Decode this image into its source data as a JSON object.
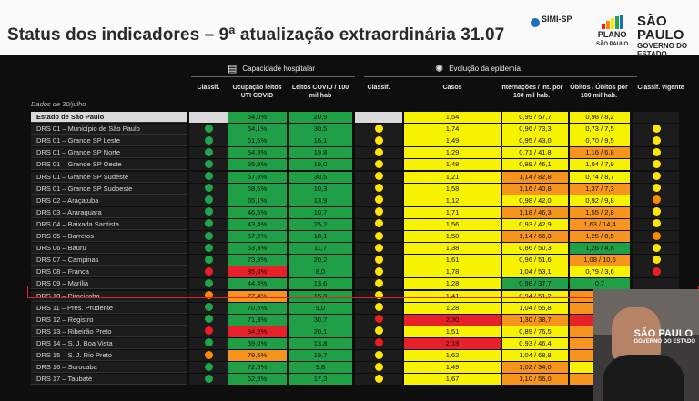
{
  "header": {
    "title": "Status dos indicadores – 9ª atualização extraordinária 31.07",
    "logos": {
      "simi": "SIMI-SP",
      "plano": "PLANO",
      "plano_sub": "SÃO PAULO",
      "sp": "SÃO PAULO",
      "sp_sub": "GOVERNO DO ESTADO"
    }
  },
  "sections": {
    "hospital": "Capacidade hospitalar",
    "epidemia": "Evolução da epidemia"
  },
  "columns": {
    "dados": "Dados de 30/julho",
    "classif1": "Classif.",
    "uti": "Ocupação leitos UTI COVID",
    "leitos": "Leitos COVID / 100 mil hab",
    "classif2": "Classif.",
    "casos": "Casos",
    "internacoes": "Internações / Int. por 100 mil hab.",
    "obitos": "Óbitos / Óbitos por 100 mil hab.",
    "vigente": "Classif. vigente"
  },
  "colors": {
    "green": "#20a046",
    "yellow": "#f7f300",
    "orange": "#f7941d",
    "red": "#e8202a",
    "dot_green": "#1fa64a",
    "dot_yellow": "#ffe600",
    "dot_orange": "#ff8a00",
    "dot_red": "#ee1c24"
  },
  "rows": [
    {
      "name": "Estado de São Paulo",
      "cls1": "",
      "uti": "64,0%",
      "uti_c": "green",
      "leitos": "20,9",
      "cls2": "",
      "casos": "1,54",
      "casos_c": "yellow",
      "int": "0,99 / 57,7",
      "int_c": "yellow",
      "obi": "0,98 / 8,2",
      "obi_c": "yellow",
      "vig": ""
    },
    {
      "name": "DRS 01 – Município de São Paulo",
      "cls1": "green",
      "uti": "64,1%",
      "uti_c": "green",
      "leitos": "30,5",
      "cls2": "yellow",
      "casos": "1,74",
      "casos_c": "yellow",
      "int": "0,96 / 73,3",
      "int_c": "yellow",
      "obi": "0,73 / 7,5",
      "obi_c": "yellow",
      "vig": "yellow"
    },
    {
      "name": "DRS 01 – Grande SP Leste",
      "cls1": "green",
      "uti": "61,6%",
      "uti_c": "green",
      "leitos": "16,1",
      "cls2": "yellow",
      "casos": "1,49",
      "casos_c": "yellow",
      "int": "0,95 / 43,0",
      "int_c": "yellow",
      "obi": "0,70 / 9,5",
      "obi_c": "yellow",
      "vig": "yellow"
    },
    {
      "name": "DRS 01 – Grande SP Norte",
      "cls1": "green",
      "uti": "54,9%",
      "uti_c": "green",
      "leitos": "19,8",
      "cls2": "yellow",
      "casos": "1,29",
      "casos_c": "yellow",
      "int": "0,71 / 41,8",
      "int_c": "yellow",
      "obi": "1,16 / 6,8",
      "obi_c": "orange",
      "vig": "yellow"
    },
    {
      "name": "DRS 01 – Grande SP Oeste",
      "cls1": "green",
      "uti": "55,9%",
      "uti_c": "green",
      "leitos": "19,0",
      "cls2": "yellow",
      "casos": "1,48",
      "casos_c": "yellow",
      "int": "0,99 / 46,1",
      "int_c": "yellow",
      "obi": "1,04 / 7,9",
      "obi_c": "yellow",
      "vig": "yellow"
    },
    {
      "name": "DRS 01 – Grande SP Sudeste",
      "cls1": "green",
      "uti": "57,9%",
      "uti_c": "green",
      "leitos": "30,5",
      "cls2": "yellow",
      "casos": "1,21",
      "casos_c": "yellow",
      "int": "1,14 / 82,8",
      "int_c": "orange",
      "obi": "0,74 / 8,7",
      "obi_c": "yellow",
      "vig": "yellow"
    },
    {
      "name": "DRS 01 – Grande SP Sudoeste",
      "cls1": "green",
      "uti": "58,6%",
      "uti_c": "green",
      "leitos": "10,3",
      "cls2": "yellow",
      "casos": "1,58",
      "casos_c": "yellow",
      "int": "1,16 / 40,8",
      "int_c": "orange",
      "obi": "1,37 / 7,3",
      "obi_c": "orange",
      "vig": "yellow"
    },
    {
      "name": "DRS 02 – Araçatuba",
      "cls1": "green",
      "uti": "65,1%",
      "uti_c": "green",
      "leitos": "13,9",
      "cls2": "yellow",
      "casos": "1,12",
      "casos_c": "yellow",
      "int": "0,98 / 42,0",
      "int_c": "yellow",
      "obi": "0,92 / 9,8",
      "obi_c": "yellow",
      "vig": "orange"
    },
    {
      "name": "DRS 03 – Araraquara",
      "cls1": "green",
      "uti": "46,5%",
      "uti_c": "green",
      "leitos": "10,7",
      "cls2": "yellow",
      "casos": "1,71",
      "casos_c": "yellow",
      "int": "1,18 / 46,3",
      "int_c": "orange",
      "obi": "1,55 / 2,8",
      "obi_c": "orange",
      "vig": "yellow"
    },
    {
      "name": "DRS 04 – Baixada Santista",
      "cls1": "green",
      "uti": "43,4%",
      "uti_c": "green",
      "leitos": "25,2",
      "cls2": "yellow",
      "casos": "1,56",
      "casos_c": "yellow",
      "int": "0,93 / 42,9",
      "int_c": "yellow",
      "obi": "1,63 / 14,4",
      "obi_c": "orange",
      "vig": "yellow"
    },
    {
      "name": "DRS 05 – Barretos",
      "cls1": "green",
      "uti": "57,2%",
      "uti_c": "green",
      "leitos": "18,1",
      "cls2": "yellow",
      "casos": "1,58",
      "casos_c": "yellow",
      "int": "1,14 / 66,3",
      "int_c": "orange",
      "obi": "1,25 / 8,5",
      "obi_c": "orange",
      "vig": "orange"
    },
    {
      "name": "DRS 06 – Bauru",
      "cls1": "green",
      "uti": "63,3%",
      "uti_c": "green",
      "leitos": "11,7",
      "cls2": "yellow",
      "casos": "1,38",
      "casos_c": "yellow",
      "int": "0,86 / 50,3",
      "int_c": "yellow",
      "obi": "1,26 / 4,8",
      "obi_c": "green",
      "vig": "yellow"
    },
    {
      "name": "DRS 07 – Campinas",
      "cls1": "green",
      "uti": "73,3%",
      "uti_c": "green",
      "leitos": "20,2",
      "cls2": "yellow",
      "casos": "1,61",
      "casos_c": "yellow",
      "int": "0,96 / 51,6",
      "int_c": "yellow",
      "obi": "1,08 / 10,6",
      "obi_c": "orange",
      "vig": "yellow"
    },
    {
      "name": "DRS 08 – Franca",
      "cls1": "red",
      "uti": "85,0%",
      "uti_c": "red",
      "leitos": "8,0",
      "cls2": "yellow",
      "casos": "1,78",
      "casos_c": "yellow",
      "int": "1,04 / 53,1",
      "int_c": "yellow",
      "obi": "0,79 / 3,6",
      "obi_c": "yellow",
      "vig": "red"
    },
    {
      "name": "DRS 09 – Marília",
      "cls1": "green",
      "uti": "44,4%",
      "uti_c": "green",
      "leitos": "13,6",
      "cls2": "yellow",
      "casos": "1,28",
      "casos_c": "yellow",
      "int": "0,98 / 37,7",
      "int_c": "green",
      "obi": "0,7",
      "obi_c": "green",
      "vig": ""
    },
    {
      "name": "DRS 10 – Piracicaba",
      "cls1": "orange",
      "uti": "77,4%",
      "uti_c": "orange",
      "leitos": "15,0",
      "cls2": "yellow",
      "casos": "1,41",
      "casos_c": "yellow",
      "int": "0,94 / 51,2",
      "int_c": "yellow",
      "obi": "1,1",
      "obi_c": "orange",
      "vig": ""
    },
    {
      "name": "DRS 11 – Pres. Prudente",
      "cls1": "green",
      "uti": "70,5%",
      "uti_c": "green",
      "leitos": "9,0",
      "cls2": "yellow",
      "casos": "1,28",
      "casos_c": "yellow",
      "int": "1,04 / 55,8",
      "int_c": "yellow",
      "obi": "1,3",
      "obi_c": "orange",
      "vig": ""
    },
    {
      "name": "DRS 12 – Registro",
      "cls1": "green",
      "uti": "71,3%",
      "uti_c": "green",
      "leitos": "30,7",
      "cls2": "red",
      "casos": "2,30",
      "casos_c": "red",
      "int": "1,30 / 38,7",
      "int_c": "orange",
      "obi": "7,2",
      "obi_c": "red",
      "vig": ""
    },
    {
      "name": "DRS 13 – Ribeirão Preto",
      "cls1": "red",
      "uti": "84,9%",
      "uti_c": "red",
      "leitos": "20,1",
      "cls2": "yellow",
      "casos": "1,51",
      "casos_c": "yellow",
      "int": "0,89 / 76,5",
      "int_c": "yellow",
      "obi": "1,0",
      "obi_c": "orange",
      "vig": ""
    },
    {
      "name": "DRS 14 – S. J. Boa Vista",
      "cls1": "green",
      "uti": "59,0%",
      "uti_c": "green",
      "leitos": "13,8",
      "cls2": "red",
      "casos": "2,18",
      "casos_c": "red",
      "int": "0,93 / 46,4",
      "int_c": "yellow",
      "obi": "1,2",
      "obi_c": "orange",
      "vig": ""
    },
    {
      "name": "DRS 15 – S. J. Rio Preto",
      "cls1": "orange",
      "uti": "79,5%",
      "uti_c": "orange",
      "leitos": "19,7",
      "cls2": "yellow",
      "casos": "1,62",
      "casos_c": "yellow",
      "int": "1,04 / 68,8",
      "int_c": "yellow",
      "obi": "1,5",
      "obi_c": "orange",
      "vig": ""
    },
    {
      "name": "DRS 16 – Sorocaba",
      "cls1": "green",
      "uti": "72,5%",
      "uti_c": "green",
      "leitos": "9,8",
      "cls2": "yellow",
      "casos": "1,49",
      "casos_c": "yellow",
      "int": "1,02 / 34,0",
      "int_c": "orange",
      "obi": "0,8",
      "obi_c": "yellow",
      "vig": ""
    },
    {
      "name": "DRS 17 – Taubaté",
      "cls1": "green",
      "uti": "62,9%",
      "uti_c": "green",
      "leitos": "17,3",
      "cls2": "yellow",
      "casos": "1,67",
      "casos_c": "yellow",
      "int": "1,10 / 56,0",
      "int_c": "orange",
      "obi": "1,0",
      "obi_c": "orange",
      "vig": ""
    }
  ],
  "video": {
    "sp": "SÃO PAULO",
    "sp_sub": "GOVERNO DO ESTADO"
  }
}
